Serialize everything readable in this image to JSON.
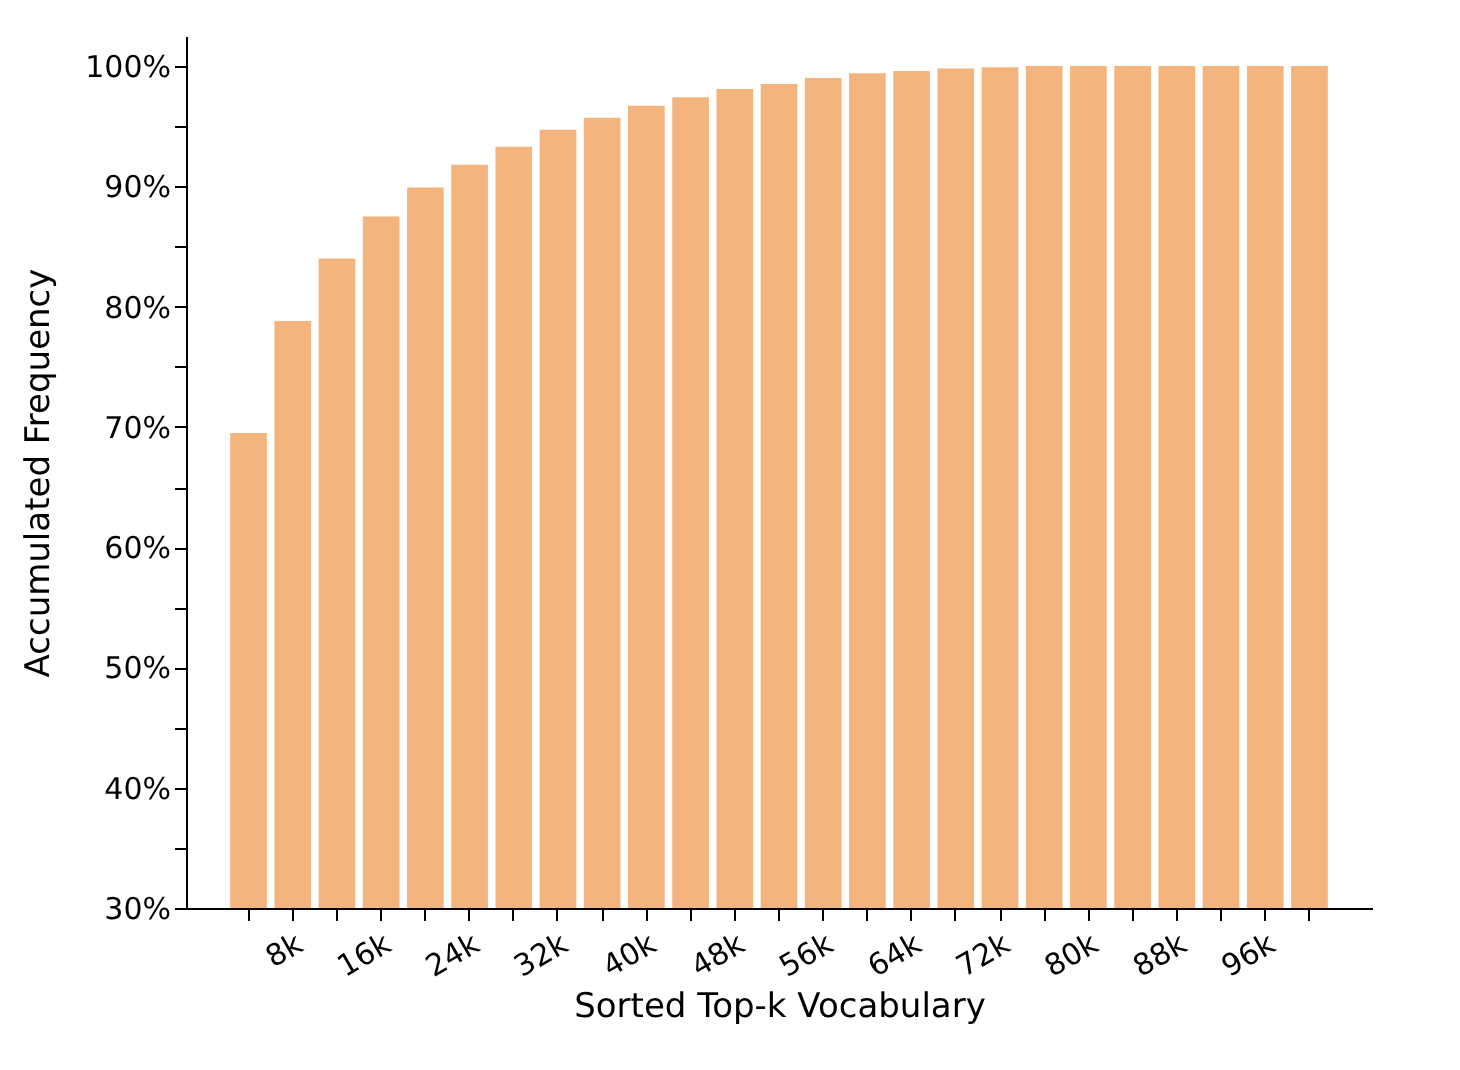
{
  "chart_data": {
    "type": "bar",
    "xlabel": "Sorted Top-k Vocabulary",
    "ylabel": "Accumulated Frequency",
    "categories": [
      null,
      "8k",
      null,
      "16k",
      null,
      "24k",
      null,
      "32k",
      null,
      "40k",
      null,
      "48k",
      null,
      "56k",
      null,
      "64k",
      null,
      "72k",
      null,
      "80k",
      null,
      "88k",
      null,
      "96k",
      null
    ],
    "values": [
      69.5,
      78.8,
      84.0,
      87.5,
      89.9,
      91.8,
      93.3,
      94.7,
      95.7,
      96.7,
      97.4,
      98.1,
      98.5,
      99.0,
      99.4,
      99.6,
      99.8,
      99.9,
      100,
      100,
      100,
      100,
      100,
      100,
      100
    ],
    "color": "#f4b47e",
    "grid": false,
    "ylim": [
      30,
      102.5
    ],
    "yticks": [
      {
        "value": 30,
        "label": "30%"
      },
      {
        "value": 35,
        "label": null
      },
      {
        "value": 40,
        "label": "40%"
      },
      {
        "value": 45,
        "label": null
      },
      {
        "value": 50,
        "label": "50%"
      },
      {
        "value": 55,
        "label": null
      },
      {
        "value": 60,
        "label": "60%"
      },
      {
        "value": 65,
        "label": null
      },
      {
        "value": 70,
        "label": "70%"
      },
      {
        "value": 75,
        "label": null
      },
      {
        "value": 80,
        "label": "80%"
      },
      {
        "value": 85,
        "label": null
      },
      {
        "value": 90,
        "label": "90%"
      },
      {
        "value": 95,
        "label": null
      },
      {
        "value": 100,
        "label": "100%"
      }
    ]
  }
}
